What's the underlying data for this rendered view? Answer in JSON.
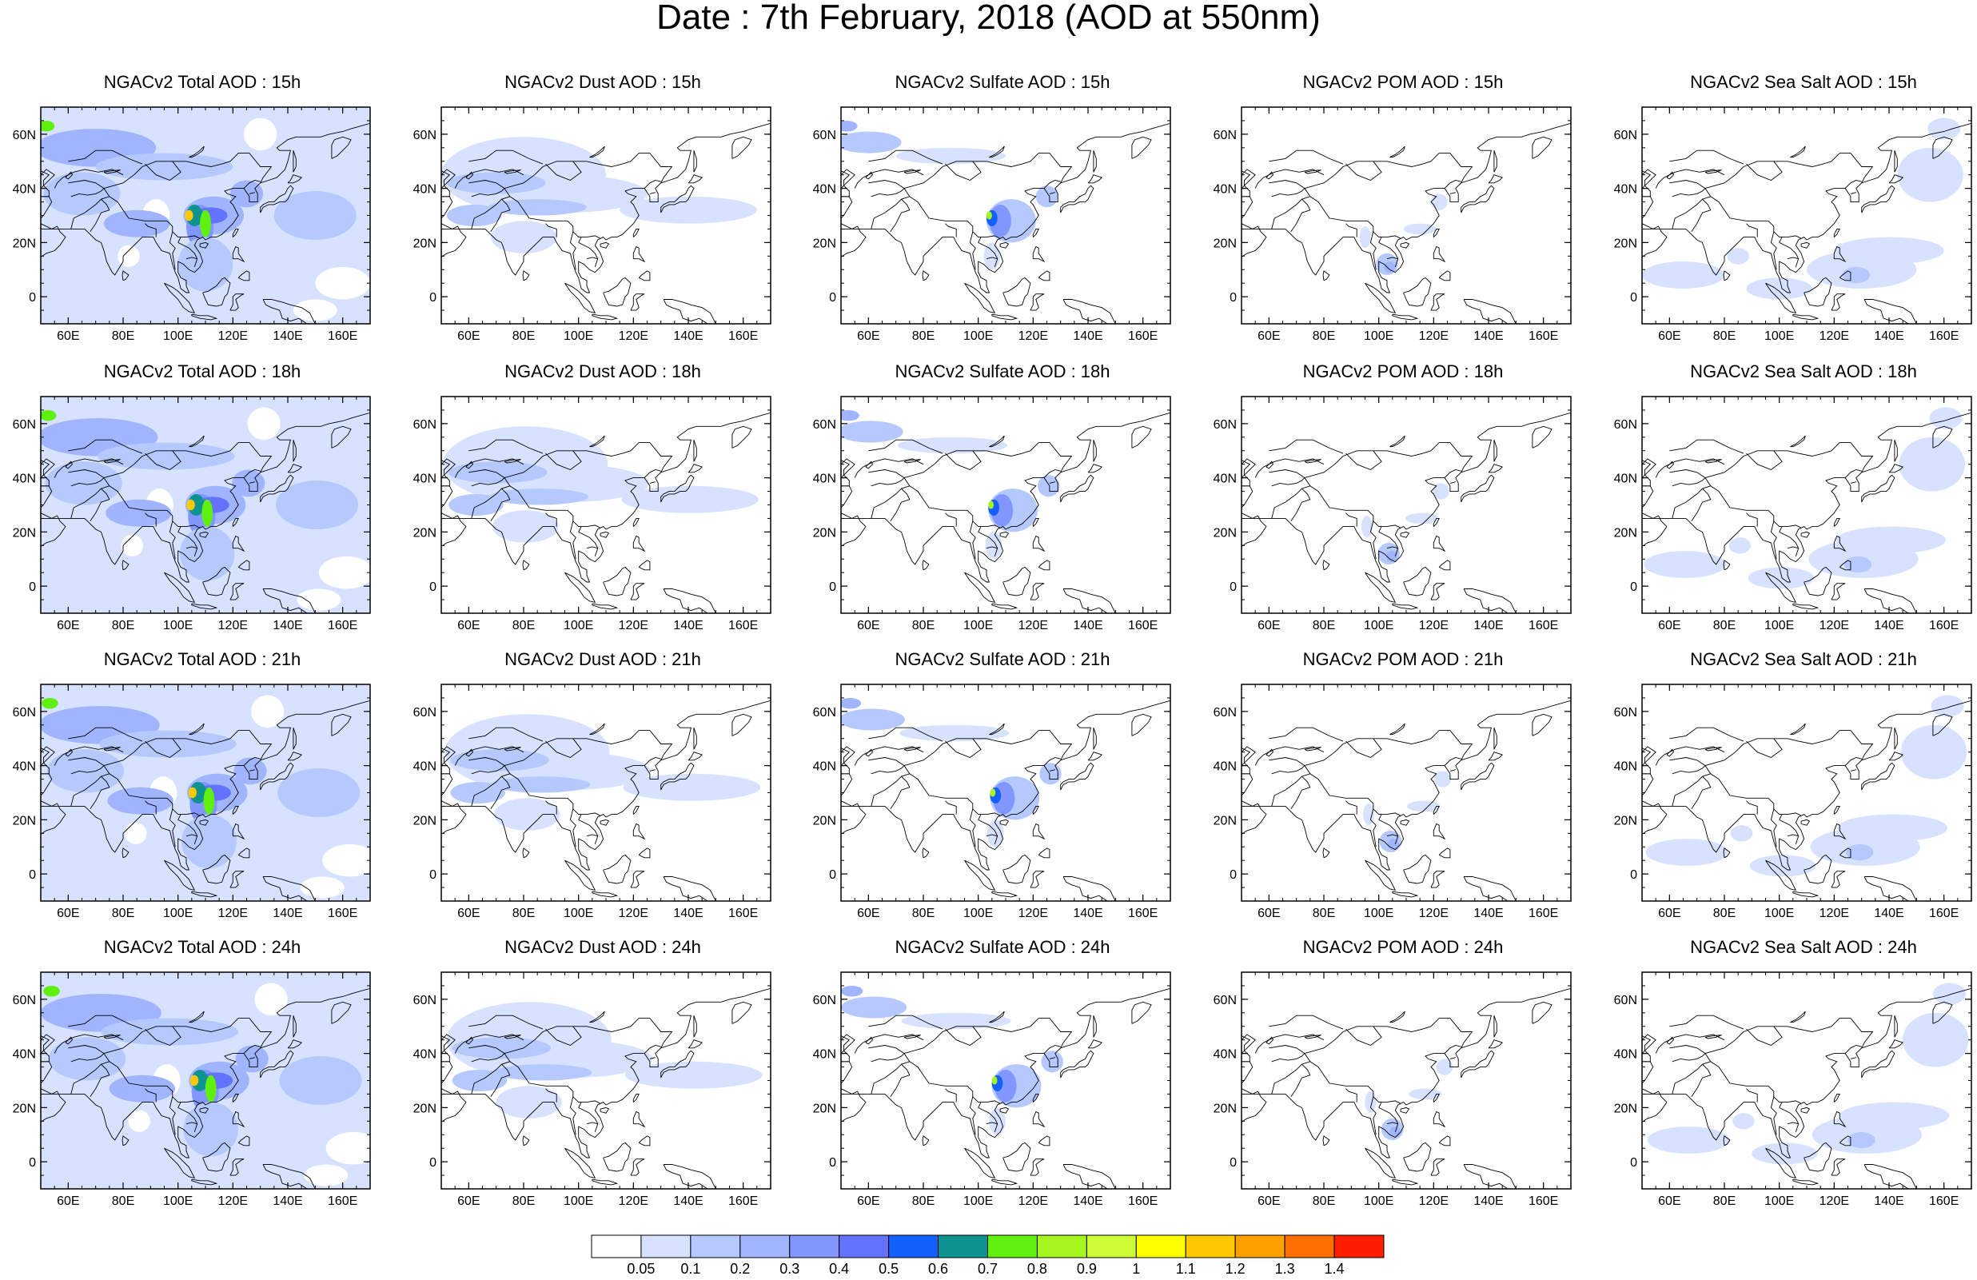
{
  "title": "Date : 7th February, 2018 (AOD at 550nm)",
  "panels": [
    [
      "NGACv2 Total AOD : 15h",
      "NGACv2 Dust AOD : 15h",
      "NGACv2 Sulfate AOD : 15h",
      "NGACv2 POM AOD : 15h",
      "NGACv2 Sea Salt AOD : 15h"
    ],
    [
      "NGACv2 Total AOD : 18h",
      "NGACv2 Dust AOD : 18h",
      "NGACv2 Sulfate AOD : 18h",
      "NGACv2 POM AOD : 18h",
      "NGACv2 Sea Salt AOD : 18h"
    ],
    [
      "NGACv2 Total AOD : 21h",
      "NGACv2 Dust AOD : 21h",
      "NGACv2 Sulfate AOD : 21h",
      "NGACv2 POM AOD : 21h",
      "NGACv2 Sea Salt AOD : 21h"
    ],
    [
      "NGACv2 Total AOD : 24h",
      "NGACv2 Dust AOD : 24h",
      "NGACv2 Sulfate AOD : 24h",
      "NGACv2 POM AOD : 24h",
      "NGACv2 Sea Salt  AOD : 24h"
    ]
  ],
  "lat_labels": [
    "60N",
    "40N",
    "20N",
    "0"
  ],
  "lon_labels": [
    "60E",
    "80E",
    "100E",
    "120E",
    "140E",
    "160E"
  ],
  "colorbar": {
    "levels": [
      "0.05",
      "0.1",
      "0.2",
      "0.3",
      "0.4",
      "0.5",
      "0.6",
      "0.7",
      "0.8",
      "0.9",
      "1",
      "1.1",
      "1.2",
      "1.3",
      "1.4"
    ],
    "colors": [
      "#ffffff",
      "#d6e2ff",
      "#b5c9ff",
      "#a0b4ff",
      "#8197ff",
      "#6372ff",
      "#1460ff",
      "#0f9391",
      "#5ff00f",
      "#a6f51f",
      "#cdfb36",
      "#ffff00",
      "#ffc800",
      "#ffa000",
      "#ff7000",
      "#ff1e00"
    ]
  }
}
